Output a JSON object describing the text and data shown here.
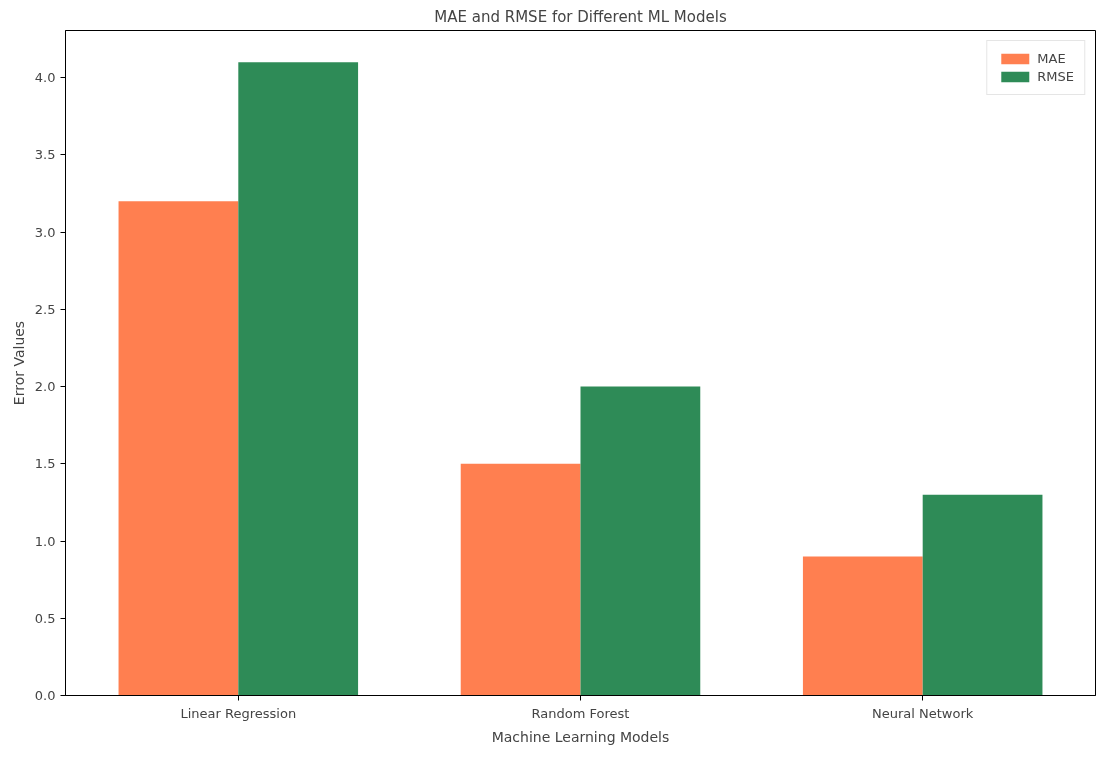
{
  "chart_data": {
    "type": "bar",
    "title": "MAE and RMSE for Different ML Models",
    "xlabel": "Machine Learning Models",
    "ylabel": "Error Values",
    "categories": [
      "Linear Regression",
      "Random Forest",
      "Neural Network"
    ],
    "series": [
      {
        "name": "MAE",
        "color": "#ff7f50",
        "values": [
          3.2,
          1.5,
          0.9
        ]
      },
      {
        "name": "RMSE",
        "color": "#2e8b57",
        "values": [
          4.1,
          2.0,
          1.3
        ]
      }
    ],
    "ylim": [
      0,
      4.305
    ],
    "yticks": [
      {
        "value": 0,
        "label": "0.0"
      },
      0.5,
      {
        "value": 1,
        "label": "1.0"
      },
      1.5,
      {
        "value": 2,
        "label": "2.0"
      },
      2.5,
      {
        "value": 3,
        "label": "3.0"
      },
      3.5,
      {
        "value": 4,
        "label": "4.0"
      }
    ],
    "grid": false,
    "legend": "top right"
  }
}
